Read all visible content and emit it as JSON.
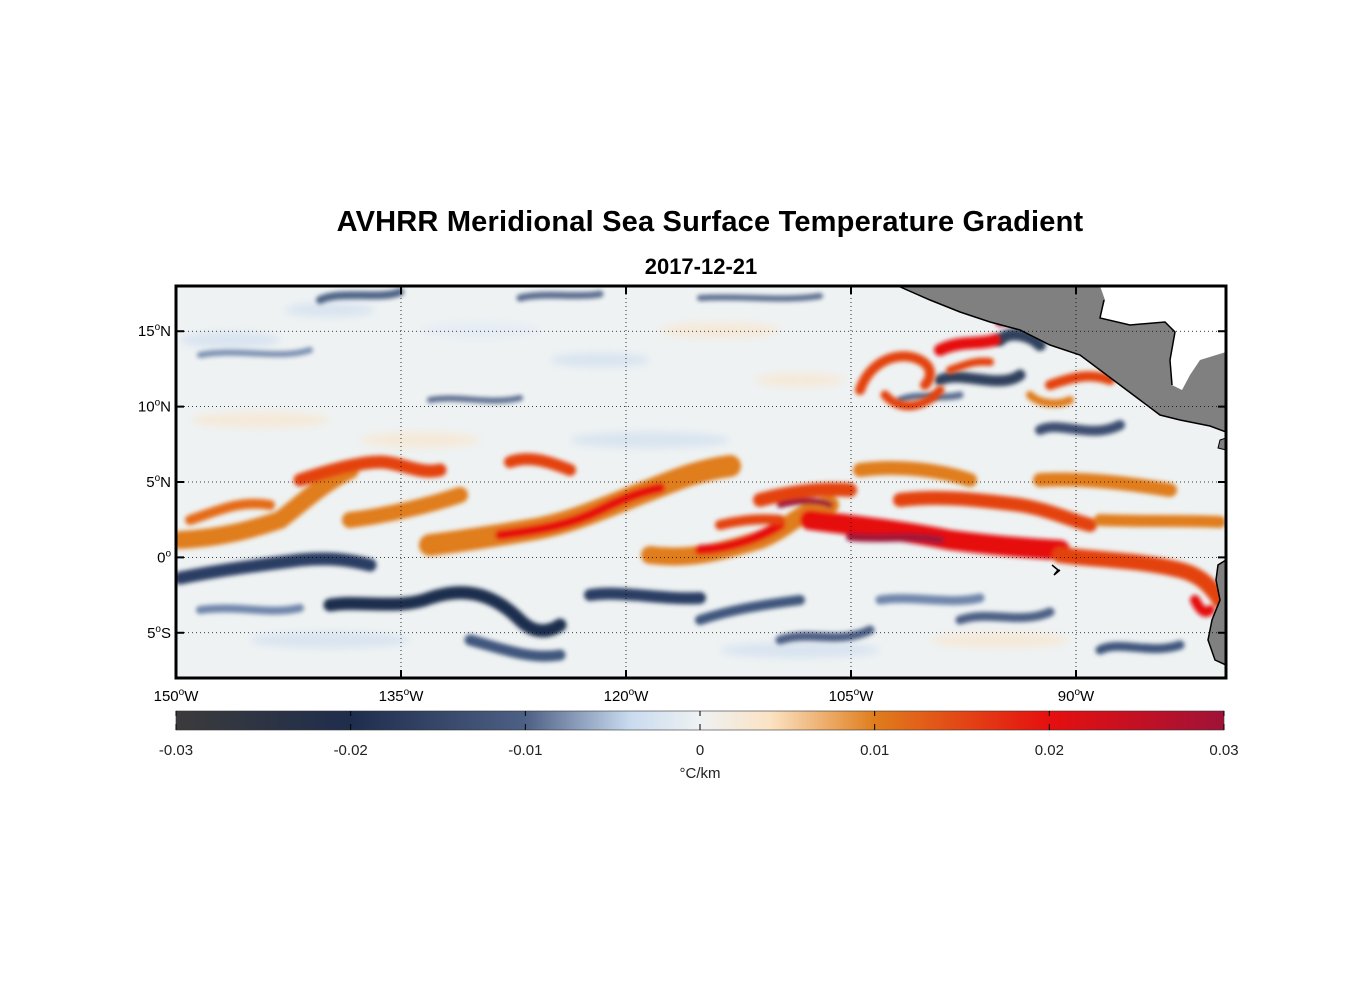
{
  "title": "AVHRR Meridional Sea Surface Temperature Gradient",
  "subtitle": "2017-12-21",
  "map": {
    "lon_range": [
      -150,
      -80
    ],
    "lat_range": [
      -8,
      18
    ],
    "grid": true,
    "land_color": "#808080",
    "lat_ticks": [
      {
        "value": 15,
        "deg": "15",
        "hemi": "N"
      },
      {
        "value": 10,
        "deg": "10",
        "hemi": "N"
      },
      {
        "value": 5,
        "deg": "5",
        "hemi": "N"
      },
      {
        "value": 0,
        "deg": "0",
        "hemi": ""
      },
      {
        "value": -5,
        "deg": "5",
        "hemi": "S"
      }
    ],
    "lon_ticks": [
      {
        "value": -150,
        "deg": "150",
        "hemi": "W"
      },
      {
        "value": -135,
        "deg": "135",
        "hemi": "W"
      },
      {
        "value": -120,
        "deg": "120",
        "hemi": "W"
      },
      {
        "value": -105,
        "deg": "105",
        "hemi": "W"
      },
      {
        "value": -90,
        "deg": "90",
        "hemi": "W"
      }
    ],
    "features": [
      {
        "name": "equatorial-front-west",
        "sign": "positive",
        "lat": 2.5,
        "lon": [
          -150,
          -135
        ]
      },
      {
        "name": "equatorial-front-central",
        "sign": "positive",
        "lat": 2.5,
        "lon": [
          -135,
          -118
        ]
      },
      {
        "name": "equatorial-front-east",
        "sign": "positive",
        "lat": 1.5,
        "lon": [
          -118,
          -88
        ]
      },
      {
        "name": "cold-tongue-south",
        "sign": "negative",
        "lat": -2.5,
        "lon": [
          -150,
          -95
        ]
      },
      {
        "name": "coastal-eddies",
        "sign": "mixed",
        "lat": 12,
        "lon": [
          -105,
          -88
        ]
      }
    ]
  },
  "colorbar": {
    "min": -0.03,
    "max": 0.03,
    "ticks": [
      "-0.03",
      "-0.02",
      "-0.01",
      "0",
      "0.01",
      "0.02",
      "0.03"
    ],
    "label": "°C/km",
    "stops": [
      {
        "v": -0.03,
        "color": "#3b3b3b"
      },
      {
        "v": -0.02,
        "color": "#1f2d4d"
      },
      {
        "v": -0.01,
        "color": "#4d6085"
      },
      {
        "v": -0.004,
        "color": "#c9dbef"
      },
      {
        "v": 0,
        "color": "#eef2f3"
      },
      {
        "v": 0.004,
        "color": "#fbe3c4"
      },
      {
        "v": 0.01,
        "color": "#e07d1c"
      },
      {
        "v": 0.02,
        "color": "#e60f0f"
      },
      {
        "v": 0.03,
        "color": "#a01238"
      }
    ]
  }
}
